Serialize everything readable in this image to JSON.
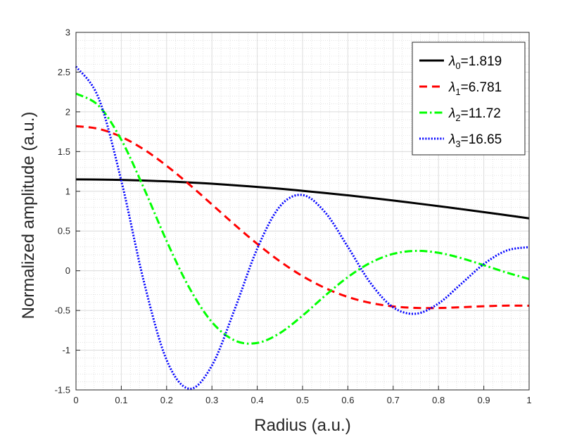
{
  "chart_data": {
    "type": "line",
    "title": "",
    "xlabel": "Radius (a.u.)",
    "ylabel": "Normalized amplitude (a.u.)",
    "xlim": [
      0,
      1
    ],
    "ylim": [
      -1.5,
      3
    ],
    "x_ticks": [
      "0",
      "0.1",
      "0.2",
      "0.3",
      "0.4",
      "0.5",
      "0.6",
      "0.7",
      "0.8",
      "0.9",
      "1"
    ],
    "y_ticks": [
      "-1.5",
      "-1",
      "-0.5",
      "0",
      "0.5",
      "1",
      "1.5",
      "2",
      "2.5",
      "3"
    ],
    "grid": "on (major and minor)",
    "legend_position": "top-right",
    "x": [
      0,
      0.05,
      0.1,
      0.15,
      0.2,
      0.25,
      0.3,
      0.35,
      0.4,
      0.45,
      0.5,
      0.55,
      0.6,
      0.65,
      0.7,
      0.75,
      0.8,
      0.85,
      0.9,
      0.95,
      1
    ],
    "series": [
      {
        "legend_symbol": "λ",
        "legend_index": "0",
        "legend_value": "=1.819",
        "color": "#000000",
        "line_style": "solid",
        "values": [
          1.15,
          1.148,
          1.143,
          1.135,
          1.125,
          1.111,
          1.095,
          1.076,
          1.055,
          1.032,
          1.006,
          0.978,
          0.949,
          0.917,
          0.884,
          0.849,
          0.813,
          0.776,
          0.738,
          0.699,
          0.659
        ]
      },
      {
        "legend_symbol": "λ",
        "legend_index": "1",
        "legend_value": "=6.781",
        "color": "#ff0000",
        "line_style": "dashed",
        "values": [
          1.82,
          1.786,
          1.685,
          1.526,
          1.321,
          1.086,
          0.834,
          0.58,
          0.338,
          0.119,
          -0.068,
          -0.218,
          -0.33,
          -0.405,
          -0.449,
          -0.468,
          -0.469,
          -0.459,
          -0.447,
          -0.439,
          -0.44
        ]
      },
      {
        "legend_symbol": "λ",
        "legend_index": "2",
        "legend_value": "=11.72",
        "color": "#00ff00",
        "line_style": "dash-dot",
        "values": [
          2.23,
          2.077,
          1.648,
          1.037,
          0.375,
          -0.214,
          -0.646,
          -0.877,
          -0.909,
          -0.785,
          -0.565,
          -0.313,
          -0.08,
          0.101,
          0.212,
          0.25,
          0.226,
          0.159,
          0.07,
          -0.022,
          -0.104
        ]
      },
      {
        "legend_symbol": "λ",
        "legend_index": "3",
        "legend_value": "=16.65",
        "color": "#0000ff",
        "line_style": "dotted",
        "values": [
          2.57,
          2.172,
          1.134,
          -0.14,
          -1.123,
          -1.485,
          -1.193,
          -0.489,
          0.278,
          0.81,
          0.953,
          0.734,
          0.3,
          -0.155,
          -0.46,
          -0.541,
          -0.412,
          -0.166,
          0.084,
          0.253,
          0.298
        ]
      }
    ]
  }
}
